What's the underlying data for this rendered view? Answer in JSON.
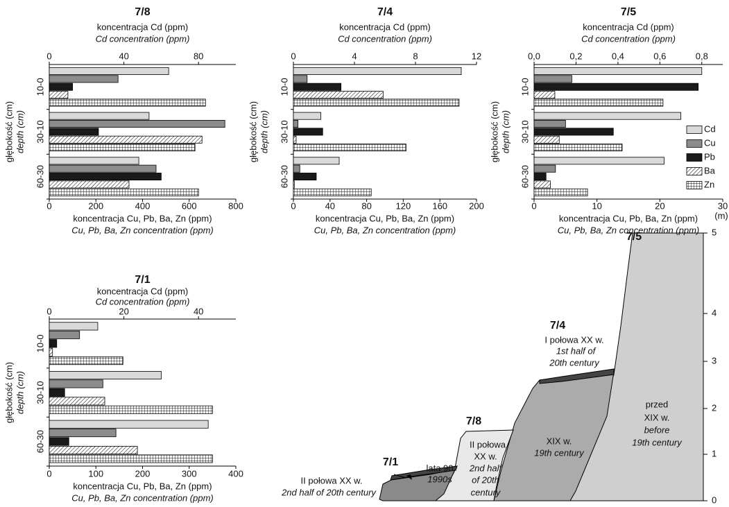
{
  "chart_data": [
    {
      "type": "bar",
      "orientation": "horizontal",
      "title": "7/8",
      "x2label": "koncentracja Cd (ppm)",
      "x2label_en": "Cd concentration (ppm)",
      "xlabel": "koncentracja Cu, Pb, Ba, Zn (ppm)",
      "xlabel_en": "Cu, Pb, Ba, Zn concentration (ppm)",
      "ylabel": "głębokość (cm)",
      "ylabel_en": "depth (cm)",
      "categories": [
        "10-0",
        "30-10",
        "60-30"
      ],
      "xlim": [
        0,
        800
      ],
      "xticks": [
        0,
        200,
        400,
        600,
        800
      ],
      "x2lim": [
        0,
        100
      ],
      "x2ticks": [
        0,
        40,
        80
      ],
      "series": [
        {
          "name": "Cd",
          "color": "#d9d9d9",
          "axis": "x2",
          "values": [
            64,
            53.5,
            48
          ]
        },
        {
          "name": "Cu",
          "color": "#8c8c8c",
          "values": [
            295,
            753,
            458
          ]
        },
        {
          "name": "Pb",
          "color": "#1a1a1a",
          "values": [
            100,
            211,
            480
          ]
        },
        {
          "name": "Ba",
          "color": "#ffffff",
          "pattern": "hatch",
          "values": [
            80,
            655,
            342
          ]
        },
        {
          "name": "Zn",
          "color": "#ffffff",
          "pattern": "grid",
          "values": [
            670,
            625,
            640
          ]
        }
      ]
    },
    {
      "type": "bar",
      "orientation": "horizontal",
      "title": "7/4",
      "x2label": "koncentracja Cd (ppm)",
      "x2label_en": "Cd concentration (ppm)",
      "xlabel": "koncentracja Cu, Pb, Ba, Zn (ppm)",
      "xlabel_en": "Cu, Pb, Ba, Zn concentration (ppm)",
      "ylabel": "głębokość (cm)",
      "ylabel_en": "depth (cm)",
      "categories": [
        "10-0",
        "30-10",
        "60-30"
      ],
      "xlim": [
        0,
        200
      ],
      "xticks": [
        0,
        40,
        80,
        120,
        160,
        200
      ],
      "x2lim": [
        0,
        12
      ],
      "x2ticks": [
        0,
        4,
        8,
        12
      ],
      "series": [
        {
          "name": "Cd",
          "color": "#d9d9d9",
          "axis": "x2",
          "values": [
            11,
            1.8,
            3
          ]
        },
        {
          "name": "Cu",
          "color": "#8c8c8c",
          "values": [
            15,
            5,
            7
          ]
        },
        {
          "name": "Pb",
          "color": "#1a1a1a",
          "values": [
            52,
            32,
            25
          ]
        },
        {
          "name": "Ba",
          "color": "#ffffff",
          "pattern": "hatch",
          "values": [
            98,
            3,
            1
          ]
        },
        {
          "name": "Zn",
          "color": "#ffffff",
          "pattern": "grid",
          "values": [
            181,
            123,
            85
          ]
        }
      ]
    },
    {
      "type": "bar",
      "orientation": "horizontal",
      "title": "7/5",
      "x2label": "koncentracja Cd (ppm)",
      "x2label_en": "Cd concentration (ppm)",
      "xlabel": "koncentracja Cu, Pb, Ba, Zn (ppm)",
      "xlabel_en": "Cu, Pb, Ba, Zn concentration (ppm)",
      "ylabel": "głębokość (cm)",
      "ylabel_en": "depth (cm)",
      "categories": [
        "10-0",
        "30-10",
        "60-30"
      ],
      "xlim": [
        0,
        30
      ],
      "xticks": [
        0,
        10,
        20,
        30
      ],
      "x2lim": [
        0,
        0.9
      ],
      "x2ticks": [
        {
          "value": 0,
          "label": "0,0"
        },
        {
          "value": 0.2,
          "label": "0,2"
        },
        {
          "value": 0.4,
          "label": "0,4"
        },
        {
          "value": 0.6,
          "label": "0,6"
        },
        {
          "value": 0.8,
          "label": "0,8"
        }
      ],
      "legend": "right",
      "series": [
        {
          "name": "Cd",
          "color": "#d9d9d9",
          "axis": "x2",
          "values": [
            0.8,
            0.7,
            0.62
          ]
        },
        {
          "name": "Cu",
          "color": "#8c8c8c",
          "values": [
            6,
            5,
            3.4
          ]
        },
        {
          "name": "Pb",
          "color": "#1a1a1a",
          "values": [
            26.1,
            12.6,
            1.9
          ]
        },
        {
          "name": "Ba",
          "color": "#ffffff",
          "pattern": "hatch",
          "values": [
            3.3,
            4,
            2.6
          ]
        },
        {
          "name": "Zn",
          "color": "#ffffff",
          "pattern": "grid",
          "values": [
            20.5,
            14,
            8.5
          ]
        }
      ]
    },
    {
      "type": "bar",
      "orientation": "horizontal",
      "title": "7/1",
      "x2label": "koncentracja Cd (ppm)",
      "x2label_en": "Cd concentration (ppm)",
      "xlabel": "koncentracja Cu, Pb, Ba, Zn (ppm)",
      "xlabel_en": "Cu, Pb, Ba, Zn concentration (ppm)",
      "ylabel": "głębokość (cm)",
      "ylabel_en": "depth (cm)",
      "categories": [
        "10-0",
        "30-10",
        "60-30"
      ],
      "xlim": [
        0,
        400
      ],
      "xticks": [
        0,
        100,
        200,
        300,
        400
      ],
      "x2lim": [
        0,
        50
      ],
      "x2ticks": [
        0,
        20,
        40
      ],
      "series": [
        {
          "name": "Cd",
          "color": "#d9d9d9",
          "axis": "x2",
          "values": [
            13,
            30,
            42.6
          ]
        },
        {
          "name": "Cu",
          "color": "#8c8c8c",
          "values": [
            65,
            115,
            143
          ]
        },
        {
          "name": "Pb",
          "color": "#1a1a1a",
          "values": [
            16,
            33,
            42
          ]
        },
        {
          "name": "Ba",
          "color": "#ffffff",
          "pattern": "hatch",
          "values": [
            7,
            119,
            189
          ]
        },
        {
          "name": "Zn",
          "color": "#ffffff",
          "pattern": "grid",
          "values": [
            158,
            350,
            350
          ]
        }
      ]
    }
  ],
  "diagram": {
    "titles": [
      "7/1",
      "7/8",
      "7/4",
      "7/5"
    ],
    "texts": [
      "II połowa XX w.",
      "2nd half of 20th century",
      "lata 90",
      "1990s",
      "II połowa",
      "XX w.",
      "2nd half",
      "of 20th",
      "century",
      "I połowa XX w.",
      "1st half of",
      "20th century",
      "XIX w.",
      "19th century",
      "przed",
      "XIX w.",
      "before",
      "19th century"
    ],
    "unit": "(m)",
    "yticks": [
      0,
      1,
      2,
      3,
      4,
      5
    ]
  }
}
